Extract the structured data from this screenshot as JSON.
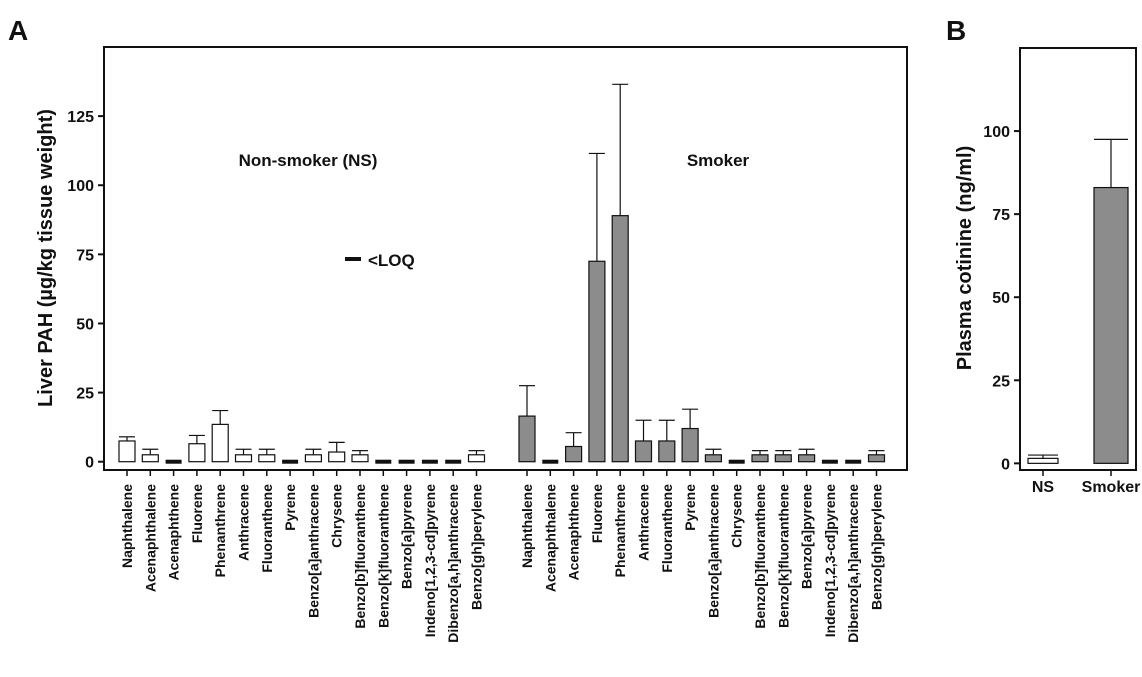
{
  "chart_data": [
    {
      "panel": "A",
      "type": "bar",
      "ylabel": "Liver PAH (µg/kg tissue weight)",
      "ylim": [
        -3,
        150
      ],
      "yticks": [
        0,
        25,
        50,
        75,
        100,
        125
      ],
      "legend_text": "<LOQ",
      "groups": [
        {
          "name": "Non-smoker (NS)",
          "fill": "#ffffff",
          "categories": [
            "Naphthalene",
            "Acenaphthalene",
            "Acenaphthene",
            "Fluorene",
            "Phenanthrene",
            "Anthracene",
            "Fluoranthene",
            "Pyrene",
            "Benzo[a]anthracene",
            "Chrysene",
            "Benzo[b]fluoranthene",
            "Benzo[k]fluoranthene",
            "Benzo[a]pyrene",
            "Indeno[1,2,3-cd]pyrene",
            "Dibenzo[a,h]anthracene",
            "Benzo[gh]perylene"
          ],
          "values": [
            7.5,
            2.5,
            null,
            6.5,
            13.5,
            2.5,
            2.5,
            null,
            2.5,
            3.5,
            2.5,
            null,
            null,
            null,
            null,
            2.5
          ],
          "errors": [
            1.5,
            2,
            null,
            3,
            5,
            2,
            2,
            null,
            2,
            3.5,
            1.5,
            null,
            null,
            null,
            null,
            1.5
          ]
        },
        {
          "name": "Smoker",
          "fill": "#8c8c8c",
          "categories": [
            "Naphthalene",
            "Acenaphthalene",
            "Acenaphthene",
            "Fluorene",
            "Phenanthrene",
            "Anthracene",
            "Fluoranthene",
            "Pyrene",
            "Benzo[a]anthracene",
            "Chrysene",
            "Benzo[b]fluoranthene",
            "Benzo[k]fluoranthene",
            "Benzo[a]pyrene",
            "Indeno[1,2,3-cd]pyrene",
            "Dibenzo[a,h]anthracene",
            "Benzo[gh]perylene"
          ],
          "values": [
            16.5,
            null,
            5.5,
            72.5,
            89,
            7.5,
            7.5,
            12,
            2.5,
            null,
            2.5,
            2.5,
            2.5,
            null,
            null,
            2.5
          ],
          "errors": [
            11,
            null,
            5,
            39,
            47.5,
            7.5,
            7.5,
            7,
            2,
            null,
            1.5,
            1.5,
            2,
            null,
            null,
            1.5
          ]
        }
      ]
    },
    {
      "panel": "B",
      "type": "bar",
      "ylabel": "Plasma cotinine (ng/ml)",
      "ylim": [
        -2,
        125
      ],
      "yticks": [
        0,
        25,
        50,
        75,
        100
      ],
      "categories": [
        "NS",
        "Smoker"
      ],
      "values": [
        1.5,
        83
      ],
      "errors": [
        1,
        14.5
      ],
      "fills": [
        "#ffffff",
        "#8c8c8c"
      ]
    }
  ]
}
